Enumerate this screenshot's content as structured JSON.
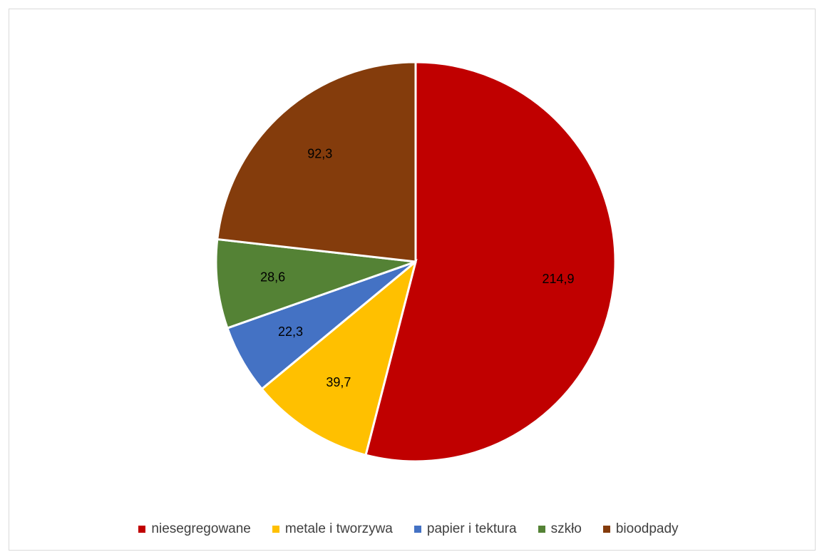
{
  "chart_data": {
    "type": "pie",
    "categories": [
      "niesegregowane",
      "metale i tworzywa",
      "papier i tektura",
      "szkło",
      "bioodpady"
    ],
    "values": [
      214.9,
      39.7,
      22.3,
      28.6,
      92.3
    ],
    "value_labels": [
      "214,9",
      "39,7",
      "22,3",
      "28,6",
      "92,3"
    ],
    "colors": [
      "#c00000",
      "#ffc000",
      "#4472c4",
      "#548235",
      "#843c0c"
    ],
    "legend_position": "bottom",
    "start_angle_deg": 0,
    "direction": "clockwise"
  }
}
